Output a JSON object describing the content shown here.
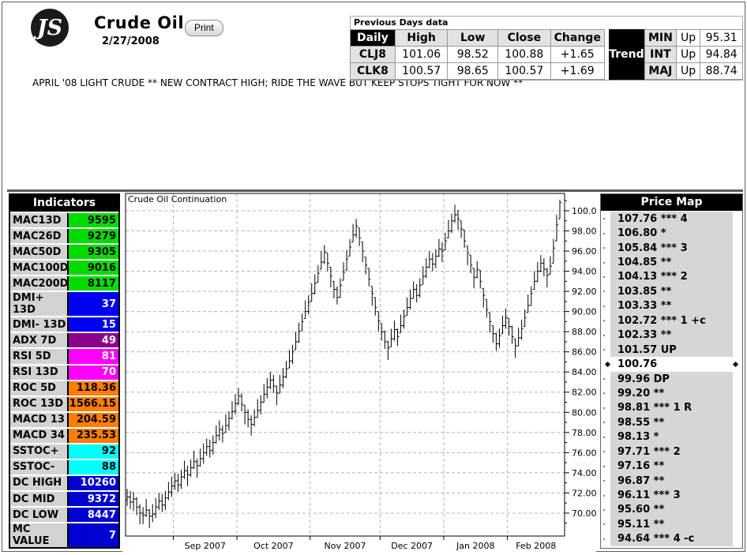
{
  "header": {
    "logo_text": "JS",
    "title": "Crude Oil",
    "print_label": "Print",
    "date": "2/27/2008",
    "headline": "APRIL '08 LIGHT CRUDE ** NEW CONTRACT HIGH; RIDE THE WAVE BUT KEEP STOPS TIGHT FOR NOW **"
  },
  "prev_days": {
    "title": "Previous Days data",
    "daily_label": "Daily",
    "columns": [
      "High",
      "Low",
      "Close",
      "Change"
    ],
    "rows": [
      {
        "label": "CLJ8",
        "high": "101.06",
        "low": "98.52",
        "close": "100.88",
        "change": "+1.65"
      },
      {
        "label": "CLK8",
        "high": "100.57",
        "low": "98.65",
        "close": "100.57",
        "change": "+1.69"
      }
    ],
    "trend_label": "Trend",
    "trend_rows": [
      {
        "label": "MIN",
        "dir": "Up",
        "value": "95.31"
      },
      {
        "label": "INT",
        "dir": "Up",
        "value": "94.84"
      },
      {
        "label": "MAJ",
        "dir": "Up",
        "value": "88.74"
      }
    ]
  },
  "indicators": {
    "title": "Indicators",
    "rows": [
      {
        "label": "MAC13D",
        "value": "9595",
        "bg": "#00dc00",
        "fg": "#000000"
      },
      {
        "label": "MAC26D",
        "value": "9279",
        "bg": "#00dc00",
        "fg": "#000000"
      },
      {
        "label": "MAC50D",
        "value": "9305",
        "bg": "#00dc00",
        "fg": "#000000"
      },
      {
        "label": "MAC100D",
        "value": "9016",
        "bg": "#00dc00",
        "fg": "#000000"
      },
      {
        "label": "MAC200D",
        "value": "8117",
        "bg": "#00dc00",
        "fg": "#000000"
      },
      {
        "label": "DMI+ 13D",
        "value": "37",
        "bg": "#0000f0",
        "fg": "#ffffff"
      },
      {
        "label": "DMI- 13D",
        "value": "15",
        "bg": "#0000f0",
        "fg": "#ffffff"
      },
      {
        "label": "ADX 7D",
        "value": "49",
        "bg": "#8a008a",
        "fg": "#ffffff"
      },
      {
        "label": "RSI 5D",
        "value": "81",
        "bg": "#ff00ff",
        "fg": "#ffffff"
      },
      {
        "label": "RSI 13D",
        "value": "70",
        "bg": "#ff00ff",
        "fg": "#ffffff"
      },
      {
        "label": "ROC 5D",
        "value": "118.36",
        "bg": "#ff7d00",
        "fg": "#000000"
      },
      {
        "label": "ROC 13D",
        "value": "1566.15",
        "bg": "#ff7d00",
        "fg": "#000000"
      },
      {
        "label": "MACD 13",
        "value": "204.59",
        "bg": "#ff7d00",
        "fg": "#000000"
      },
      {
        "label": "MACD 34",
        "value": "235.53",
        "bg": "#ff7d00",
        "fg": "#000000"
      },
      {
        "label": "SSTOC+",
        "value": "92",
        "bg": "#00ffff",
        "fg": "#000000"
      },
      {
        "label": "SSTOC-",
        "value": "88",
        "bg": "#00ffff",
        "fg": "#000000"
      },
      {
        "label": "DC HIGH",
        "value": "10260",
        "bg": "#0000d0",
        "fg": "#ffffff"
      },
      {
        "label": "DC MID",
        "value": "9372",
        "bg": "#0000d0",
        "fg": "#ffffff"
      },
      {
        "label": "DC LOW",
        "value": "8447",
        "bg": "#0000d0",
        "fg": "#ffffff"
      },
      {
        "label": "MC VALUE",
        "value": "7",
        "bg": "#0000d0",
        "fg": "#ffffff"
      }
    ]
  },
  "price_map": {
    "title": "Price Map",
    "rows": [
      {
        "text": "107.76 *** 4",
        "current": false
      },
      {
        "text": "106.80 *",
        "current": false
      },
      {
        "text": "105.84 *** 3",
        "current": false
      },
      {
        "text": "104.85 **",
        "current": false
      },
      {
        "text": "104.13 *** 2",
        "current": false
      },
      {
        "text": "103.85 **",
        "current": false
      },
      {
        "text": "103.33 **",
        "current": false
      },
      {
        "text": "102.72 *** 1 +c",
        "current": false
      },
      {
        "text": "102.33 **",
        "current": false
      },
      {
        "text": "101.57 UP",
        "current": false
      },
      {
        "text": "100.76",
        "current": true
      },
      {
        "text": "99.96 DP",
        "current": false
      },
      {
        "text": "99.20 **",
        "current": false
      },
      {
        "text": "98.81 *** 1 R",
        "current": false
      },
      {
        "text": "98.55 **",
        "current": false
      },
      {
        "text": "98.13 *",
        "current": false
      },
      {
        "text": "97.71 *** 2",
        "current": false
      },
      {
        "text": "97.16 **",
        "current": false
      },
      {
        "text": "96.87 **",
        "current": false
      },
      {
        "text": "96.11 *** 3",
        "current": false
      },
      {
        "text": "95.60 **",
        "current": false
      },
      {
        "text": "95.11 **",
        "current": false
      },
      {
        "text": "94.64 *** 4 -c",
        "current": false
      }
    ]
  },
  "chart_data": {
    "type": "ohlc-bar",
    "title": "Crude Oil Continuation",
    "x_tick_labels": [
      "Sep 2007",
      "Oct 2007",
      "Nov 2007",
      "Dec 2007",
      "Jan 2008",
      "Feb 2008"
    ],
    "month_start_indices": [
      15,
      35,
      58,
      80,
      100,
      120
    ],
    "y_ticks": [
      70,
      72,
      74,
      76,
      78,
      80,
      82,
      84,
      86,
      88,
      90,
      92,
      94,
      96,
      98,
      100
    ],
    "y_minor_step": 1,
    "ylim": [
      68.3,
      101.7
    ],
    "grid": "dashed",
    "bar_color": "#000000",
    "bars_hlc": [
      [
        72.4,
        70.7,
        71.6
      ],
      [
        72.2,
        70.4,
        71.1
      ],
      [
        72.1,
        70.2,
        71.4
      ],
      [
        71.6,
        69.8,
        70.6
      ],
      [
        70.9,
        68.9,
        70.0
      ],
      [
        70.6,
        68.9,
        69.8
      ],
      [
        71.4,
        69.6,
        70.3
      ],
      [
        70.4,
        68.5,
        69.7
      ],
      [
        70.9,
        69.1,
        69.9
      ],
      [
        71.5,
        69.5,
        70.6
      ],
      [
        72.0,
        70.3,
        71.2
      ],
      [
        71.9,
        70.1,
        70.8
      ],
      [
        72.2,
        70.3,
        71.5
      ],
      [
        73.1,
        71.3,
        72.1
      ],
      [
        73.6,
        71.6,
        72.7
      ],
      [
        74.0,
        72.3,
        73.2
      ],
      [
        73.9,
        72.1,
        72.8
      ],
      [
        74.3,
        72.4,
        73.6
      ],
      [
        75.2,
        73.4,
        74.2
      ],
      [
        74.7,
        72.7,
        73.8
      ],
      [
        75.3,
        73.6,
        74.5
      ],
      [
        76.2,
        74.4,
        75.1
      ],
      [
        75.4,
        73.5,
        74.7
      ],
      [
        76.4,
        74.6,
        75.4
      ],
      [
        76.9,
        74.9,
        76.0
      ],
      [
        77.4,
        75.7,
        76.6
      ],
      [
        77.3,
        75.5,
        76.2
      ],
      [
        77.7,
        75.8,
        77.0
      ],
      [
        78.7,
        76.9,
        77.7
      ],
      [
        79.2,
        77.2,
        78.3
      ],
      [
        78.7,
        77.0,
        77.9
      ],
      [
        79.8,
        78.0,
        78.7
      ],
      [
        80.1,
        78.2,
        79.4
      ],
      [
        81.1,
        79.3,
        80.1
      ],
      [
        81.8,
        79.8,
        80.9
      ],
      [
        82.4,
        80.7,
        81.6
      ],
      [
        81.9,
        80.1,
        80.8
      ],
      [
        80.7,
        78.8,
        80.0
      ],
      [
        80.3,
        78.5,
        79.3
      ],
      [
        79.7,
        77.7,
        78.8
      ],
      [
        80.3,
        78.6,
        79.5
      ],
      [
        81.3,
        79.5,
        80.2
      ],
      [
        81.7,
        79.8,
        81.0
      ],
      [
        82.8,
        81.0,
        81.8
      ],
      [
        83.4,
        81.4,
        82.5
      ],
      [
        84.0,
        82.3,
        83.2
      ],
      [
        83.7,
        81.9,
        82.6
      ],
      [
        82.6,
        80.7,
        81.9
      ],
      [
        83.7,
        81.9,
        82.7
      ],
      [
        84.4,
        82.4,
        83.5
      ],
      [
        85.1,
        83.4,
        84.3
      ],
      [
        86.2,
        84.4,
        85.1
      ],
      [
        86.7,
        84.8,
        86.0
      ],
      [
        88.0,
        86.2,
        87.0
      ],
      [
        88.9,
        86.9,
        88.0
      ],
      [
        89.8,
        88.1,
        89.0
      ],
      [
        91.1,
        89.3,
        90.0
      ],
      [
        91.6,
        89.7,
        90.9
      ],
      [
        92.8,
        91.0,
        91.8
      ],
      [
        93.7,
        91.7,
        92.8
      ],
      [
        94.6,
        92.9,
        93.8
      ],
      [
        96.0,
        94.2,
        94.9
      ],
      [
        96.6,
        94.7,
        95.9
      ],
      [
        95.8,
        94.0,
        94.8
      ],
      [
        94.4,
        92.4,
        93.5
      ],
      [
        93.0,
        91.3,
        92.2
      ],
      [
        92.5,
        90.7,
        91.4
      ],
      [
        93.3,
        91.4,
        92.6
      ],
      [
        94.9,
        93.1,
        93.9
      ],
      [
        96.1,
        94.1,
        95.2
      ],
      [
        97.2,
        95.5,
        96.4
      ],
      [
        98.7,
        96.9,
        97.6
      ],
      [
        99.2,
        97.3,
        98.5
      ],
      [
        98.3,
        96.5,
        97.3
      ],
      [
        96.9,
        94.9,
        96.0
      ],
      [
        95.4,
        93.7,
        94.6
      ],
      [
        94.3,
        92.5,
        93.2
      ],
      [
        92.5,
        90.6,
        91.8
      ],
      [
        91.4,
        89.6,
        90.4
      ],
      [
        90.0,
        88.0,
        89.1
      ],
      [
        88.8,
        87.1,
        88.0
      ],
      [
        88.1,
        86.3,
        87.0
      ],
      [
        87.1,
        85.2,
        86.4
      ],
      [
        88.3,
        86.5,
        87.3
      ],
      [
        89.1,
        87.1,
        88.2
      ],
      [
        88.3,
        86.6,
        87.5
      ],
      [
        89.7,
        87.9,
        88.6
      ],
      [
        90.2,
        88.3,
        89.5
      ],
      [
        91.4,
        89.6,
        90.4
      ],
      [
        92.2,
        90.2,
        91.3
      ],
      [
        93.0,
        91.3,
        92.2
      ],
      [
        92.7,
        90.9,
        91.6
      ],
      [
        93.3,
        91.4,
        92.6
      ],
      [
        94.5,
        92.7,
        93.5
      ],
      [
        95.3,
        93.3,
        94.4
      ],
      [
        96.0,
        94.3,
        95.2
      ],
      [
        95.8,
        94.0,
        94.7
      ],
      [
        96.2,
        94.3,
        95.5
      ],
      [
        97.2,
        95.4,
        96.2
      ],
      [
        96.9,
        94.9,
        96.0
      ],
      [
        97.8,
        96.1,
        97.0
      ],
      [
        99.1,
        97.3,
        98.0
      ],
      [
        99.7,
        97.8,
        99.0
      ],
      [
        100.6,
        98.8,
        99.6
      ],
      [
        100.1,
        98.1,
        99.2
      ],
      [
        99.0,
        97.3,
        98.2
      ],
      [
        98.1,
        96.3,
        97.0
      ],
      [
        96.5,
        94.6,
        95.8
      ],
      [
        95.6,
        93.8,
        94.6
      ],
      [
        94.3,
        92.3,
        93.4
      ],
      [
        95.0,
        93.3,
        94.2
      ],
      [
        94.1,
        92.3,
        93.0
      ],
      [
        92.3,
        90.4,
        91.6
      ],
      [
        91.2,
        89.4,
        90.2
      ],
      [
        89.9,
        87.9,
        89.0
      ],
      [
        88.6,
        86.9,
        87.8
      ],
      [
        87.9,
        86.1,
        86.8
      ],
      [
        88.3,
        86.4,
        87.6
      ],
      [
        89.6,
        87.8,
        88.6
      ],
      [
        90.3,
        88.3,
        89.4
      ],
      [
        89.3,
        87.6,
        88.5
      ],
      [
        88.6,
        86.8,
        87.5
      ],
      [
        87.3,
        85.4,
        86.6
      ],
      [
        88.4,
        86.6,
        87.4
      ],
      [
        89.2,
        87.2,
        88.3
      ],
      [
        90.2,
        88.5,
        89.4
      ],
      [
        91.7,
        89.9,
        90.6
      ],
      [
        92.5,
        90.6,
        91.8
      ],
      [
        94.0,
        92.2,
        93.0
      ],
      [
        94.9,
        92.9,
        94.0
      ],
      [
        95.6,
        93.9,
        94.8
      ],
      [
        95.3,
        93.5,
        94.2
      ],
      [
        94.3,
        92.4,
        93.6
      ],
      [
        95.5,
        93.7,
        94.5
      ],
      [
        97.2,
        94.8,
        96.3
      ],
      [
        99.6,
        97.0,
        98.6
      ],
      [
        101.1,
        99.2,
        100.8
      ]
    ]
  },
  "colors": {
    "grid": "#b4b4b4",
    "panel_gray": "#d6d6d6",
    "cell_gray": "#d2d2d2",
    "header_black": "#000000"
  }
}
